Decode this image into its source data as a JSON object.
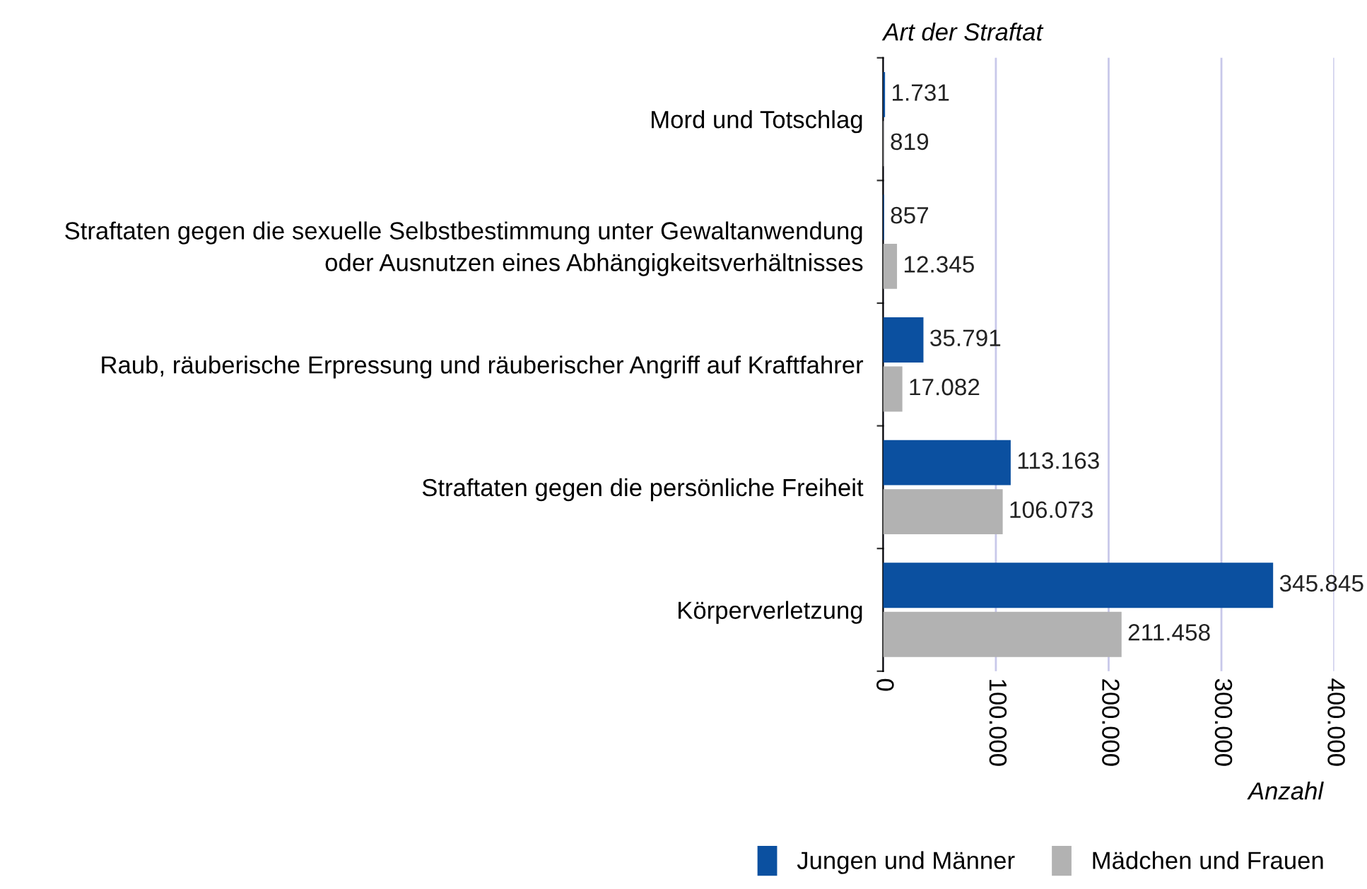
{
  "chart_data": {
    "type": "bar",
    "orientation": "horizontal",
    "ylabel": "Art der Straftat",
    "xlabel": "Anzahl",
    "categories": [
      "Mord und Totschlag",
      "Straftaten gegen die sexuelle Selbstbestimmung unter Gewaltanwendung\noder Ausnutzen eines Abhängigkeitsverhältnisses",
      "Raub, räuberische Erpressung und räuberischer Angriff auf Kraftfahrer",
      "Straftaten gegen die persönliche Freiheit",
      "Körperverletzung"
    ],
    "series": [
      {
        "name": "Jungen und Männer",
        "color": "#0b50a0",
        "values": [
          1731,
          857,
          35791,
          113163,
          345845
        ],
        "value_labels": [
          "1.731",
          "857",
          "35.791",
          "113.163",
          "345.845"
        ]
      },
      {
        "name": "Mädchen und Frauen",
        "color": "#b2b2b2",
        "values": [
          819,
          12345,
          17082,
          106073,
          211458
        ],
        "value_labels": [
          "819",
          "12.345",
          "17.082",
          "106.073",
          "211.458"
        ]
      }
    ],
    "xlim": [
      0,
      400000
    ],
    "xticks": [
      0,
      {
        "value": 100000,
        "label": "100.000"
      },
      {
        "value": 200000,
        "label": "200.000"
      },
      {
        "value": 300000,
        "label": "300.000"
      },
      {
        "value": 400000,
        "label": "400.000"
      }
    ],
    "grid": "x",
    "legend": "bottom"
  }
}
